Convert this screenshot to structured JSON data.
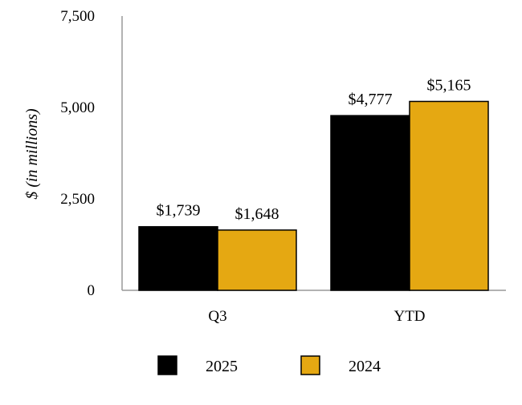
{
  "chart_data": {
    "type": "bar",
    "categories": [
      "Q3",
      "YTD"
    ],
    "series": [
      {
        "name": "2025",
        "values": [
          1739,
          4777
        ],
        "labels": [
          "$1,739",
          "$4,777"
        ],
        "color": "#000000"
      },
      {
        "name": "2024",
        "values": [
          1648,
          5165
        ],
        "labels": [
          "$1,648",
          "$5,165"
        ],
        "color": "#E5A812"
      }
    ],
    "ylabel": "$ (in millions)",
    "xlabel": "",
    "ylim": [
      0,
      7500
    ],
    "yticks": [
      0,
      2500,
      5000,
      7500
    ],
    "ytick_labels": [
      "0",
      "2,500",
      "5,000",
      "7,500"
    ],
    "grid": false,
    "legend": "bottom"
  }
}
